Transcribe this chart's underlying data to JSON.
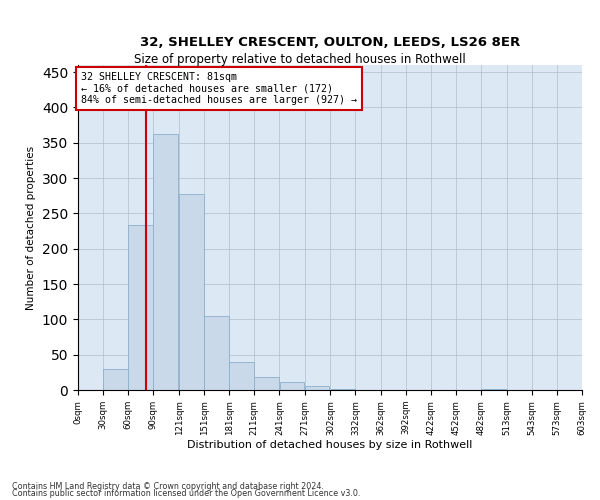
{
  "title1": "32, SHELLEY CRESCENT, OULTON, LEEDS, LS26 8ER",
  "title2": "Size of property relative to detached houses in Rothwell",
  "xlabel": "Distribution of detached houses by size in Rothwell",
  "ylabel": "Number of detached properties",
  "annotation_lines": [
    "32 SHELLEY CRESCENT: 81sqm",
    "← 16% of detached houses are smaller (172)",
    "84% of semi-detached houses are larger (927) →"
  ],
  "property_size_sqm": 81,
  "bar_values": [
    0,
    30,
    233,
    363,
    278,
    105,
    40,
    18,
    12,
    6,
    1,
    0,
    0,
    0,
    0,
    0,
    1,
    0,
    0,
    0
  ],
  "bin_left_edges": [
    0,
    30,
    60,
    90,
    121,
    151,
    181,
    211,
    241,
    271,
    302,
    332,
    362,
    392,
    422,
    452,
    482,
    513,
    543,
    573
  ],
  "bin_width": 30,
  "bin_labels": [
    "0sqm",
    "30sqm",
    "60sqm",
    "90sqm",
    "121sqm",
    "151sqm",
    "181sqm",
    "211sqm",
    "241sqm",
    "271sqm",
    "302sqm",
    "332sqm",
    "362sqm",
    "392sqm",
    "422sqm",
    "452sqm",
    "482sqm",
    "513sqm",
    "543sqm",
    "573sqm",
    "603sqm"
  ],
  "xtick_positions": [
    0,
    30,
    60,
    90,
    121,
    151,
    181,
    211,
    241,
    271,
    302,
    332,
    362,
    392,
    422,
    452,
    482,
    513,
    543,
    573,
    603
  ],
  "bar_color": "#c9d9ea",
  "bar_edge_color": "#8ab0cc",
  "vline_color": "#cc0000",
  "annotation_box_edgecolor": "#cc0000",
  "bg_axes": "#dce8f4",
  "background_color": "#ffffff",
  "grid_color": "#b0bfcc",
  "ylim": [
    0,
    460
  ],
  "yticks": [
    0,
    50,
    100,
    150,
    200,
    250,
    300,
    350,
    400,
    450
  ],
  "xlim": [
    0,
    603
  ],
  "footer1": "Contains HM Land Registry data © Crown copyright and database right 2024.",
  "footer2": "Contains public sector information licensed under the Open Government Licence v3.0."
}
